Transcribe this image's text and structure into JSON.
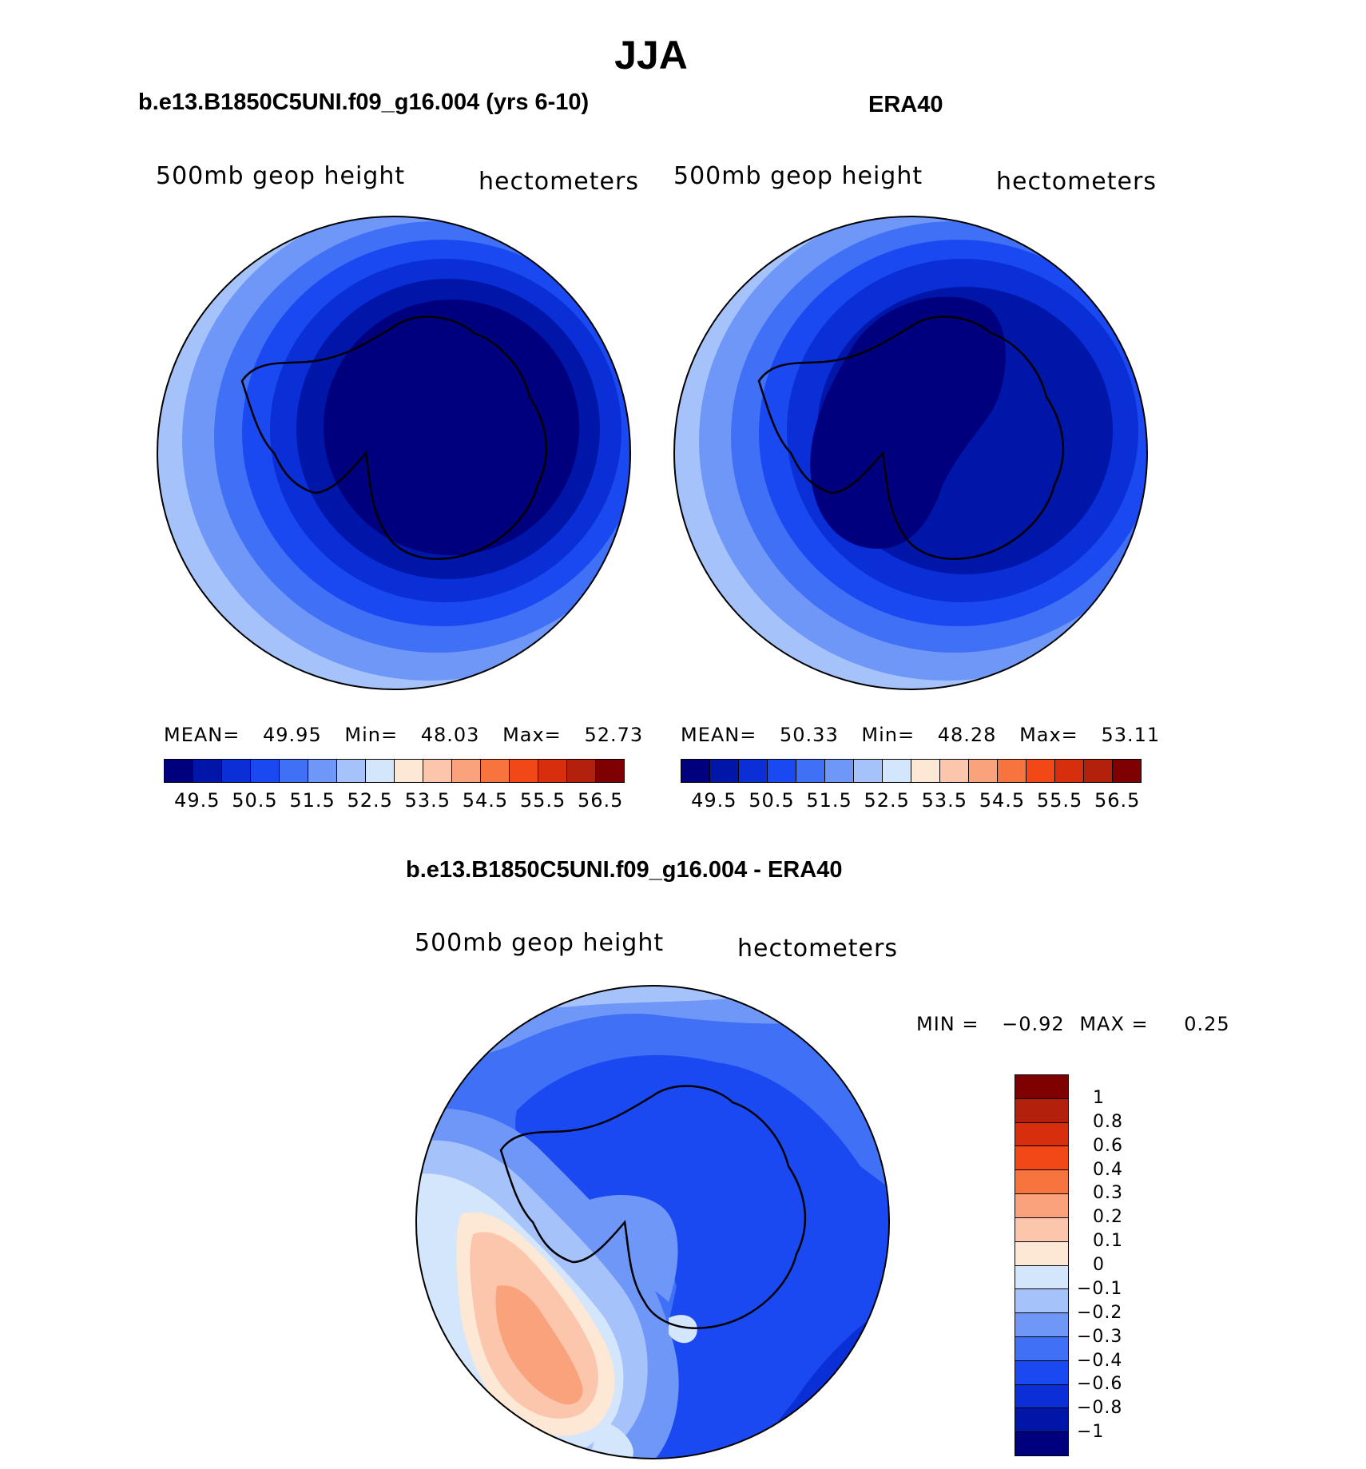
{
  "title": "JJA",
  "panels": [
    {
      "heading": "b.e13.B1850C5UNI.f09_g16.004 (yrs 6-10)",
      "variable": "500mb geop height",
      "units": "hectometers",
      "stats": {
        "mean_label": "MEAN=",
        "mean": "49.95",
        "min_label": "Min=",
        "min": "48.03",
        "max_label": "Max=",
        "max": "52.73"
      }
    },
    {
      "heading": "ERA40",
      "variable": "500mb geop height",
      "units": "hectometers",
      "stats": {
        "mean_label": "MEAN=",
        "mean": "50.33",
        "min_label": "Min=",
        "min": "48.28",
        "max_label": "Max=",
        "max": "53.11"
      }
    }
  ],
  "colorbar": {
    "colors": [
      "#00007f",
      "#0016a8",
      "#0a2fd6",
      "#1a49f2",
      "#3f70f5",
      "#6e97f7",
      "#a6c2fb",
      "#d4e6fc",
      "#fde7d5",
      "#fcc6ac",
      "#f9a27c",
      "#f7743f",
      "#f24717",
      "#d72e0d",
      "#b3200c",
      "#7f0000"
    ],
    "labels": [
      "49.5",
      "50.5",
      "51.5",
      "52.5",
      "53.5",
      "54.5",
      "55.5",
      "56.5"
    ]
  },
  "diff": {
    "heading": "b.e13.B1850C5UNI.f09_g16.004 - ERA40",
    "variable": "500mb geop height",
    "units": "hectometers",
    "min_label": "MIN =",
    "min": "−0.92",
    "max_label": "MAX =",
    "max": "0.25",
    "colors": [
      "#7f0000",
      "#b3200c",
      "#d72e0d",
      "#f24717",
      "#f7743f",
      "#f9a27c",
      "#fcc6ac",
      "#fde7d5",
      "#d4e6fc",
      "#a6c2fb",
      "#6e97f7",
      "#3f70f5",
      "#1a49f2",
      "#0a2fd6",
      "#0016a8",
      "#00007f"
    ],
    "labels": [
      "1",
      "0.8",
      "0.6",
      "0.4",
      "0.3",
      "0.2",
      "0.1",
      "0",
      "−0.1",
      "−0.2",
      "−0.3",
      "−0.4",
      "−0.6",
      "−0.8",
      "−1"
    ]
  }
}
